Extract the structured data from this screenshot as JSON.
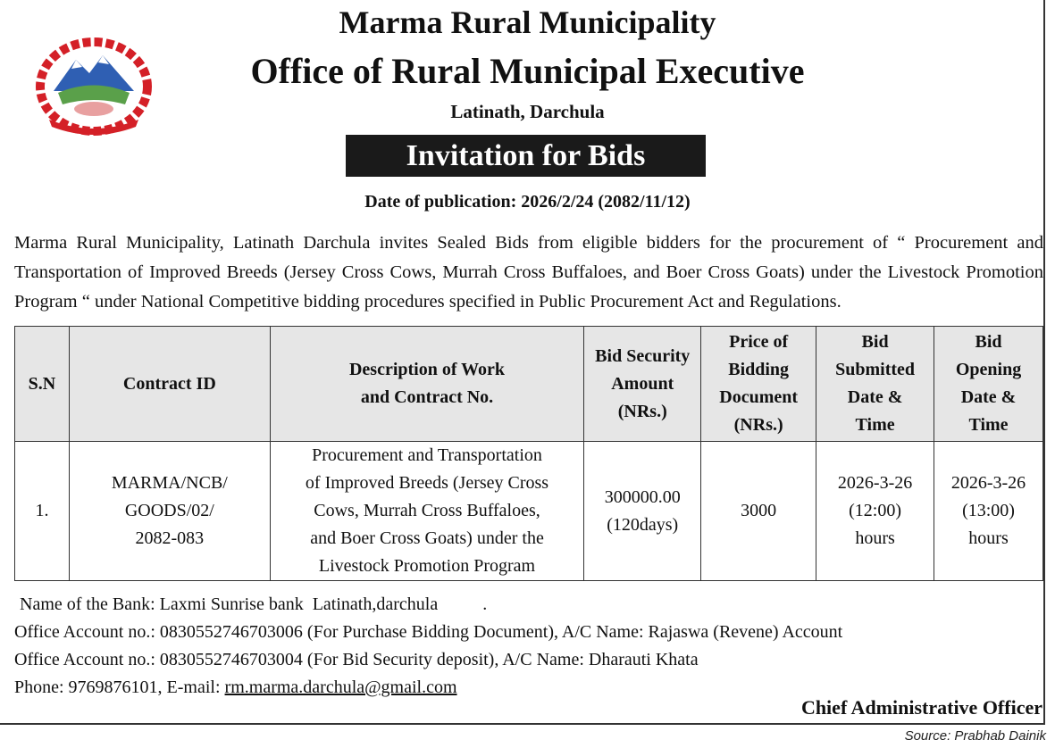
{
  "header": {
    "municipality": "Marma Rural Municipality",
    "office": "Office of Rural Municipal Executive",
    "location": "Latinath, Darchula",
    "banner": "Invitation for Bids",
    "publication_date": "Date of publication: 2026/2/24 (2082/11/12)",
    "emblem_icon": "nepal-emblem-icon"
  },
  "intro": "Marma Rural Municipality, Latinath Darchula invites Sealed Bids from eligible bidders for the procurement of “ Procurement and Transportation of Improved Breeds (Jersey Cross Cows, Murrah Cross Buffaloes, and Boer Cross Goats) under the Livestock Promotion Program “ under National Competitive bidding procedures specified in Public Procurement Act and Regulations.",
  "table": {
    "headers": [
      [
        "S.N"
      ],
      [
        "Contract ID"
      ],
      [
        "Description of Work",
        "and Contract No."
      ],
      [
        "Bid Security",
        "Amount",
        "(NRs.)"
      ],
      [
        "Price of",
        "Bidding",
        "Document",
        "(NRs.)"
      ],
      [
        "Bid",
        "Submitted",
        "Date &",
        "Time"
      ],
      [
        "Bid",
        "Opening",
        "Date &",
        "Time"
      ]
    ],
    "rows": [
      [
        [
          "1."
        ],
        [
          "MARMA/NCB/",
          "GOODS/02/",
          "2082-083"
        ],
        [
          "Procurement and Transportation",
          "of Improved Breeds (Jersey Cross",
          "Cows, Murrah Cross Buffaloes,",
          "and Boer Cross Goats) under the",
          "Livestock Promotion Program"
        ],
        [
          "300000.00",
          "(120days)"
        ],
        [
          "3000"
        ],
        [
          "2026-3-26",
          "(12:00)",
          "hours"
        ],
        [
          "2026-3-26",
          "(13:00)",
          "hours"
        ]
      ]
    ]
  },
  "footer": {
    "bank": "Name of the Bank: Laxmi Sunrise bank  Latinath,darchula          .",
    "account1": "Office Account no.: 0830552746703006  (For Purchase Bidding Document), A/C Name: Rajaswa (Revene) Account",
    "account2": "Office Account no.: 0830552746703004 (For Bid Security deposit), A/C Name:  Dharauti Khata",
    "phone_prefix": "Phone: 9769876101, E-mail: ",
    "email": "rm.marma.darchula@gmail.com",
    "signatory": "Chief Administrative Officer",
    "source": "Source: Prabhab Dainik"
  },
  "colors": {
    "banner_bg": "#1a1a1a",
    "header_bg": "#e6e6e6",
    "emblem_red": "#d42027",
    "emblem_blue": "#2f5fb3"
  }
}
